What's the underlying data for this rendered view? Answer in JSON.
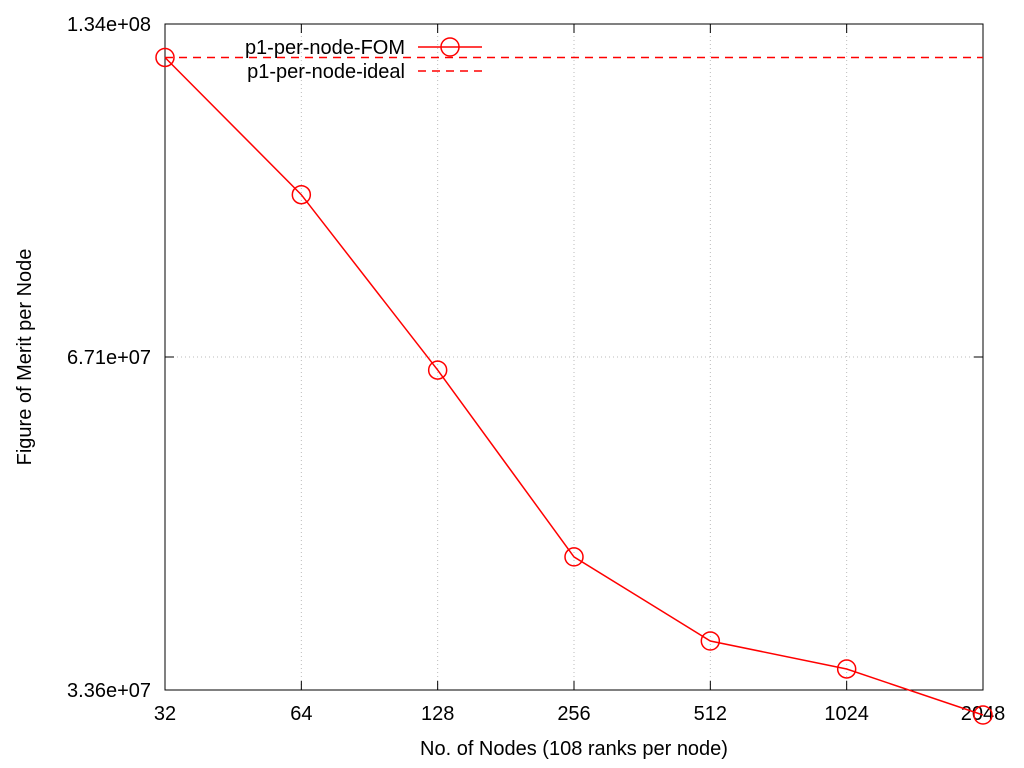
{
  "chart_data": {
    "type": "line",
    "xlabel": "No. of Nodes (108 ranks per node)",
    "ylabel": "Figure of Merit per Node",
    "x_scale": "log2",
    "y_scale": "log",
    "xlim": [
      32,
      2048
    ],
    "ylim": [
      33600000,
      134000000
    ],
    "x_ticks": [
      32,
      64,
      128,
      256,
      512,
      1024,
      2048
    ],
    "x_tick_labels": [
      "32",
      "64",
      "128",
      "256",
      "512",
      "1024",
      "2048"
    ],
    "y_ticks": [
      33600000,
      67100000,
      134000000
    ],
    "y_tick_labels": [
      "3.36e+07",
      "6.71e+07",
      "1.34e+08"
    ],
    "grid": true,
    "legend_position": "top",
    "series": [
      {
        "name": "p1-per-node-FOM",
        "style": "solid-line-circle-markers",
        "color": "#ff0000",
        "x": [
          32,
          64,
          128,
          256,
          512,
          1024,
          2048
        ],
        "y": [
          125000000,
          94000000,
          65300000,
          44300000,
          37200000,
          35100000,
          31900000
        ]
      },
      {
        "name": "p1-per-node-ideal",
        "style": "dashed-line",
        "color": "#ff0000",
        "x": [
          32,
          2048
        ],
        "y": [
          125000000,
          125000000
        ]
      }
    ]
  }
}
